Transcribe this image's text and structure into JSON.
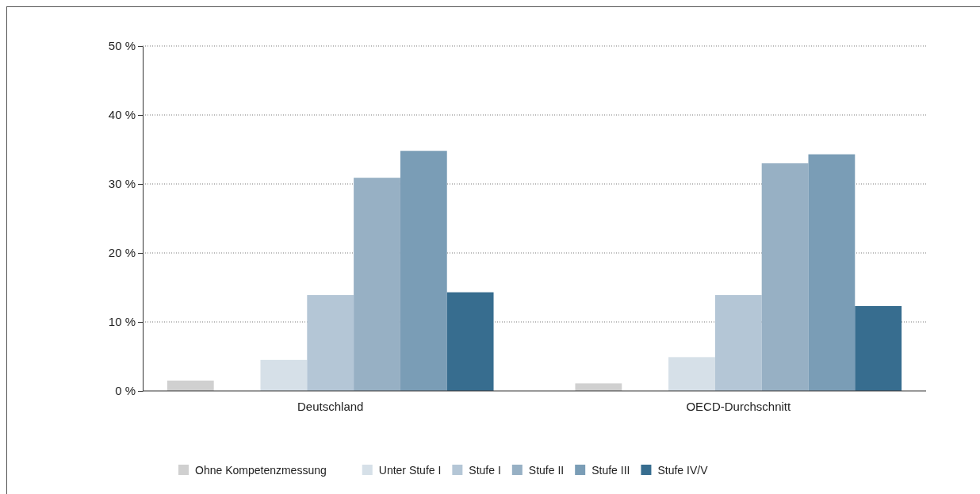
{
  "chart_data": {
    "type": "bar",
    "categories": [
      "Deutschland",
      "OECD-Durchschnitt"
    ],
    "series": [
      {
        "name": "Ohne Kompetenzmessung",
        "color": "#d0d0d0",
        "values": [
          1.5,
          1.1
        ]
      },
      {
        "name": "Unter Stufe I",
        "color": "#d6e0e8",
        "values": [
          4.5,
          4.9
        ]
      },
      {
        "name": "Stufe I",
        "color": "#b4c6d6",
        "values": [
          13.9,
          13.9
        ]
      },
      {
        "name": "Stufe II",
        "color": "#97b0c4",
        "values": [
          30.9,
          33.0
        ]
      },
      {
        "name": "Stufe III",
        "color": "#7a9db6",
        "values": [
          34.8,
          34.3
        ]
      },
      {
        "name": "Stufe IV/V",
        "color": "#376d8f",
        "values": [
          14.3,
          12.3
        ]
      }
    ],
    "ylim": [
      0,
      50
    ],
    "yticks": [
      {
        "value": 0,
        "label": "0 %"
      },
      {
        "value": 10,
        "label": "10 %"
      },
      {
        "value": 20,
        "label": "20 %"
      },
      {
        "value": 30,
        "label": "30 %"
      },
      {
        "value": 40,
        "label": "40 %"
      },
      {
        "value": 50,
        "label": "50 %"
      }
    ],
    "grid": "y",
    "legend": "bottom"
  }
}
